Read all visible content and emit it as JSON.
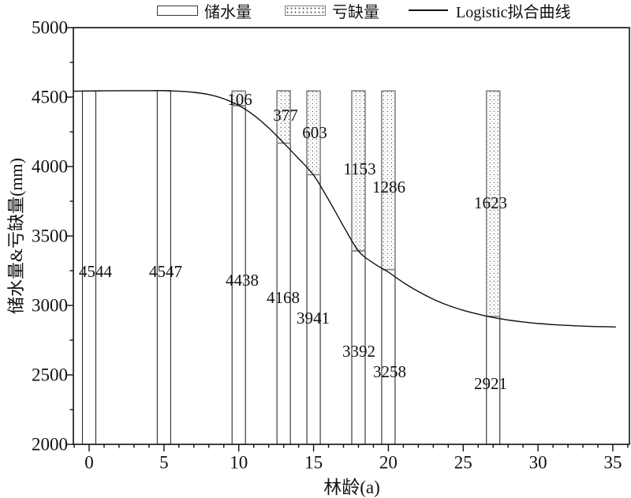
{
  "legend": {
    "storage_label": "储水量",
    "deficit_label": "亏缺量",
    "curve_label": "Logistic拟合曲线"
  },
  "colors": {
    "background": "#ffffff",
    "bar_fill": "#ffffff",
    "bar_stroke": "#2a2a2a",
    "deficit_stroke": "#828282",
    "dot_color": "#555555",
    "curve_color": "#111111",
    "axis_color": "#111111",
    "text_color": "#111111"
  },
  "chart_data": {
    "type": "bar",
    "title": "",
    "xlabel": "林龄(a)",
    "ylabel": "储水量&亏缺量(mm)",
    "xlim": [
      -1.05,
      36.1
    ],
    "ylim": [
      2000,
      5000
    ],
    "x_major_ticks": [
      0,
      5,
      10,
      15,
      20,
      25,
      30,
      35
    ],
    "x_minor_step": 1,
    "y_major_ticks": [
      2000,
      2500,
      3000,
      3500,
      4000,
      4500,
      5000
    ],
    "y_minor_step": 250,
    "grid": false,
    "legend_position": "top-center",
    "categories": [
      0,
      5,
      10,
      13,
      15,
      18,
      20,
      27
    ],
    "series": [
      {
        "name": "储水量",
        "values": [
          4544,
          4547,
          4438,
          4168,
          3941,
          3392,
          3258,
          2921
        ]
      },
      {
        "name": "亏缺量",
        "values": [
          0,
          0,
          106,
          377,
          603,
          1153,
          1286,
          1623
        ]
      }
    ],
    "curve": {
      "name": "Logistic拟合曲线",
      "points": [
        [
          -1.05,
          4542
        ],
        [
          0,
          4544
        ],
        [
          1,
          4545
        ],
        [
          2,
          4546
        ],
        [
          3,
          4546
        ],
        [
          4,
          4546
        ],
        [
          5,
          4546
        ],
        [
          6,
          4542
        ],
        [
          7,
          4534
        ],
        [
          8,
          4518
        ],
        [
          9,
          4488
        ],
        [
          10,
          4440
        ],
        [
          11,
          4370
        ],
        [
          12,
          4278
        ],
        [
          13,
          4170
        ],
        [
          14,
          4057
        ],
        [
          15,
          3938
        ],
        [
          16,
          3762
        ],
        [
          17,
          3570
        ],
        [
          18,
          3392
        ],
        [
          19,
          3305
        ],
        [
          20,
          3240
        ],
        [
          21,
          3165
        ],
        [
          22,
          3100
        ],
        [
          23,
          3045
        ],
        [
          24,
          3000
        ],
        [
          25,
          2965
        ],
        [
          26,
          2937
        ],
        [
          27,
          2913
        ],
        [
          28,
          2895
        ],
        [
          29,
          2881
        ],
        [
          30,
          2870
        ],
        [
          31,
          2862
        ],
        [
          32,
          2856
        ],
        [
          33,
          2851
        ],
        [
          34,
          2848
        ],
        [
          35.2,
          2845
        ]
      ]
    }
  }
}
